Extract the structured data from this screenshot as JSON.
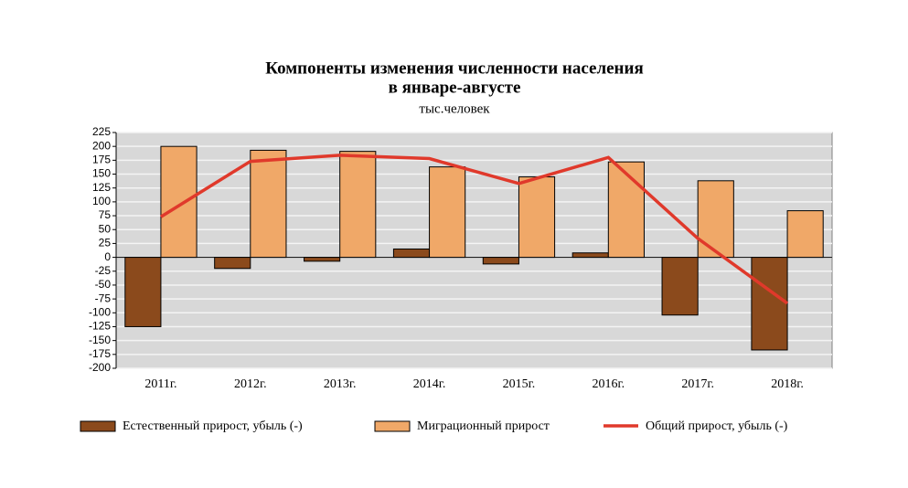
{
  "chart_data": {
    "type": "bar-line",
    "title": "Компоненты изменения численности населения",
    "title_line2": "в январе-августе",
    "subtitle": "тыс.человек",
    "categories": [
      "2011г.",
      "2012г.",
      "2013г.",
      "2014г.",
      "2015г.",
      "2016г.",
      "2017г.",
      "2018г."
    ],
    "series": [
      {
        "name": "Естественный прирост, убыль (-)",
        "color": "#8b4a1c",
        "kind": "bar",
        "values": [
          -125,
          -20,
          -7,
          15,
          -12,
          8,
          -104,
          -167
        ]
      },
      {
        "name": "Миграционный прирост",
        "color": "#f0a868",
        "kind": "bar",
        "values": [
          200,
          193,
          191,
          163,
          145,
          172,
          138,
          84
        ]
      },
      {
        "name": "Общий прирост, убыль (-)",
        "color": "#e0392b",
        "kind": "line",
        "values": [
          73,
          173,
          184,
          178,
          133,
          180,
          34,
          -83
        ]
      }
    ],
    "ylim": [
      -200,
      225
    ],
    "yticks": [
      -200,
      -175,
      -150,
      -125,
      -100,
      -75,
      -50,
      -25,
      0,
      25,
      50,
      75,
      100,
      125,
      150,
      175,
      200,
      225
    ],
    "grid": true
  }
}
